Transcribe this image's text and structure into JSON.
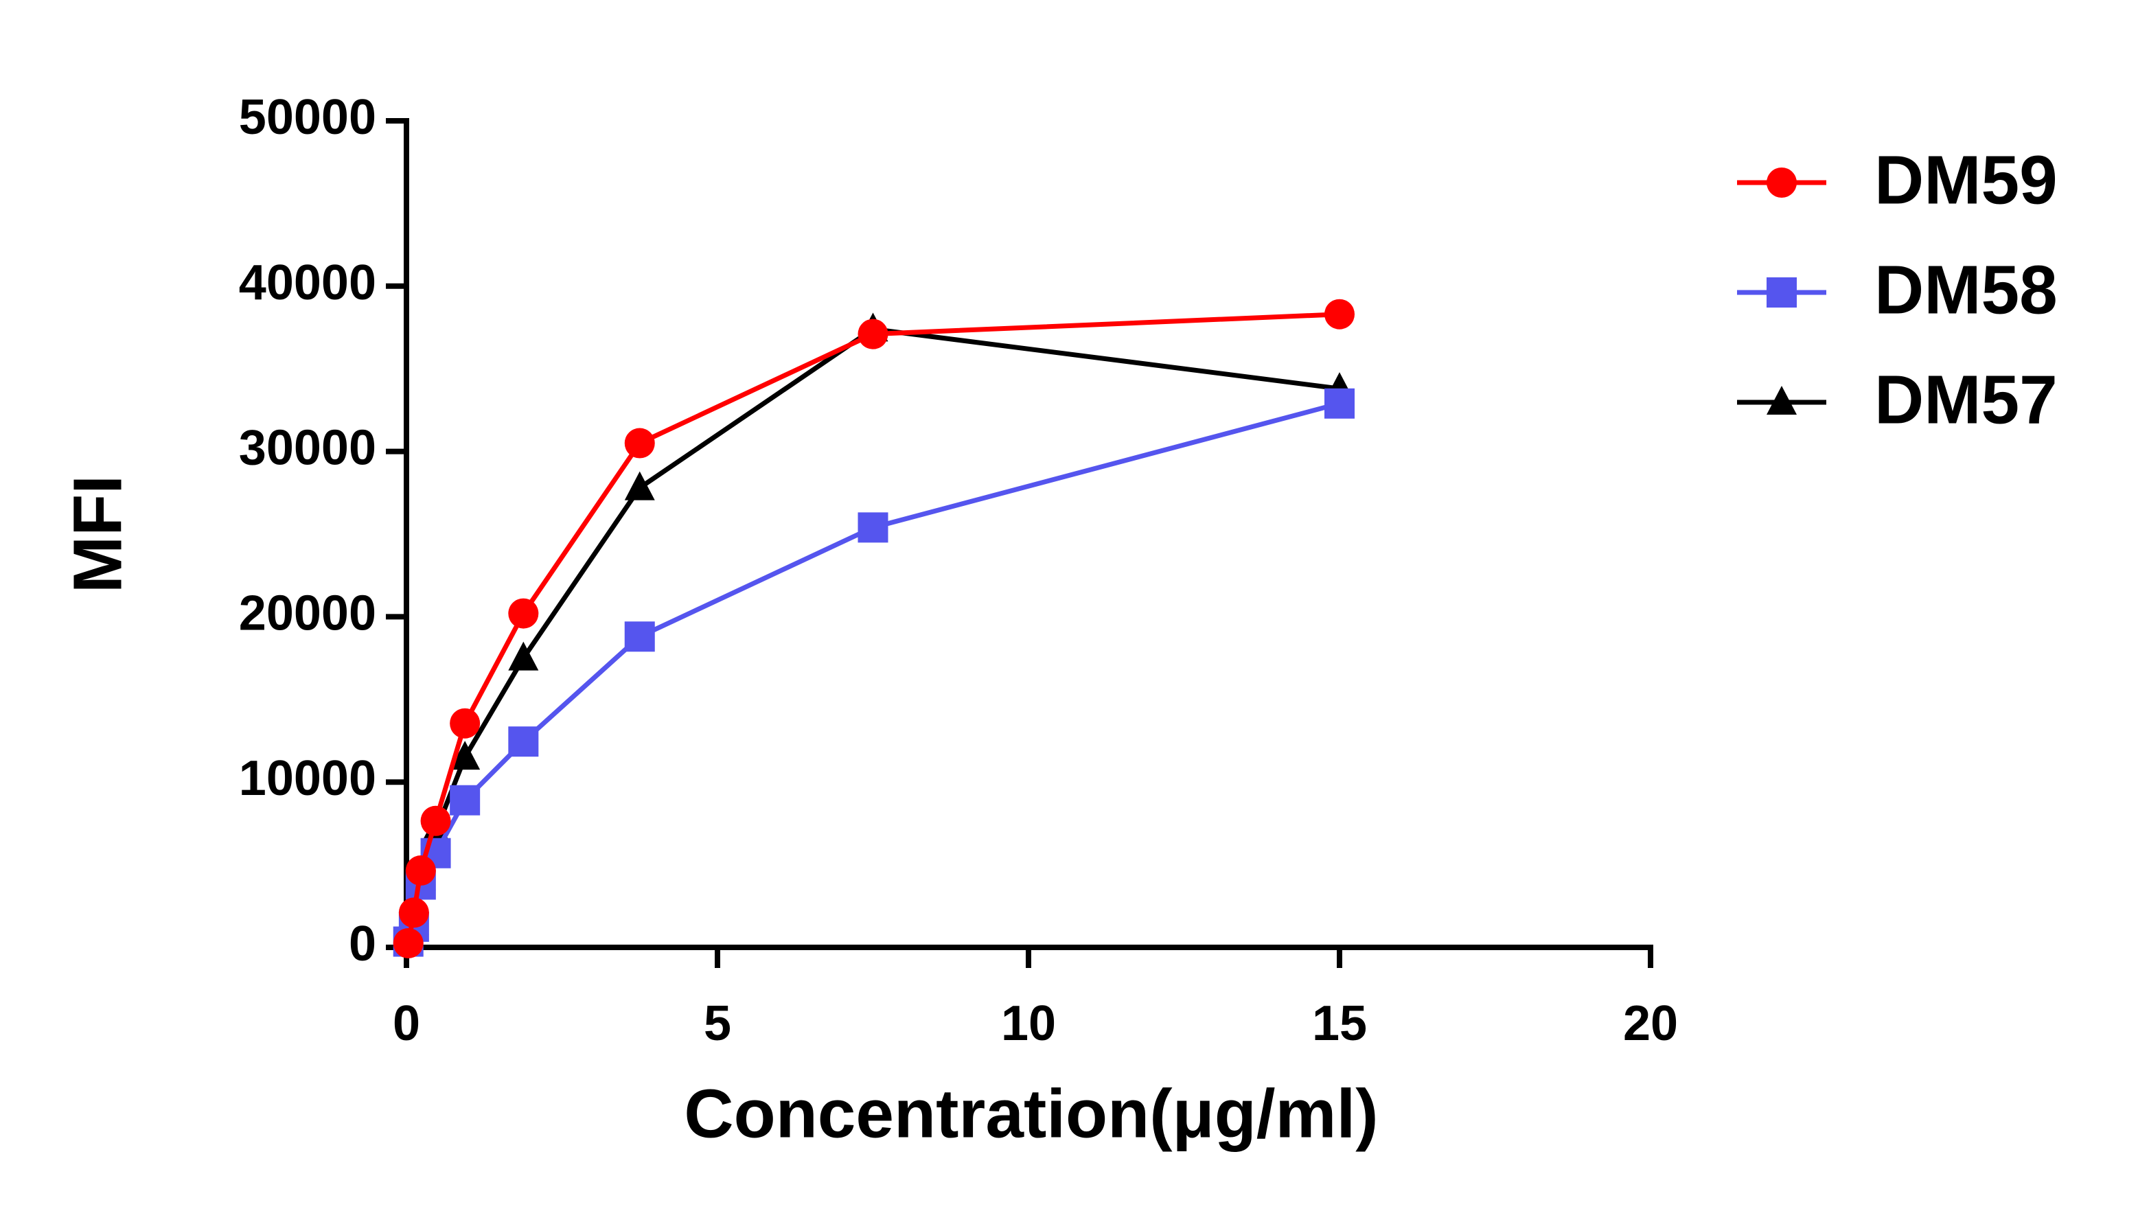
{
  "chart_data": {
    "type": "line",
    "x_label": "Concentration(μg/ml)",
    "y_label": "MFI",
    "xlim": [
      0,
      20
    ],
    "xticks": [
      0,
      5,
      10,
      15,
      20
    ],
    "ylim": [
      0,
      50000
    ],
    "yticks": [
      0,
      10000,
      20000,
      30000,
      40000,
      50000
    ],
    "x": [
      0.03,
      0.12,
      0.23,
      0.47,
      0.94,
      1.88,
      3.75,
      7.5,
      15
    ],
    "legend": "right",
    "series": [
      {
        "name": "DM59",
        "color": "#ff0000",
        "marker": "circle",
        "values": [
          250,
          2100,
          4650,
          7650,
          13550,
          20200,
          30500,
          37100,
          38300
        ]
      },
      {
        "name": "DM58",
        "color": "#5555ee",
        "marker": "square",
        "values": [
          350,
          1250,
          3800,
          5700,
          8900,
          12450,
          18800,
          25400,
          32900
        ]
      },
      {
        "name": "DM57",
        "color": "#000000",
        "marker": "triangle",
        "values": [
          300,
          1500,
          4200,
          7000,
          11500,
          17500,
          27800,
          37400,
          33800
        ]
      }
    ]
  }
}
